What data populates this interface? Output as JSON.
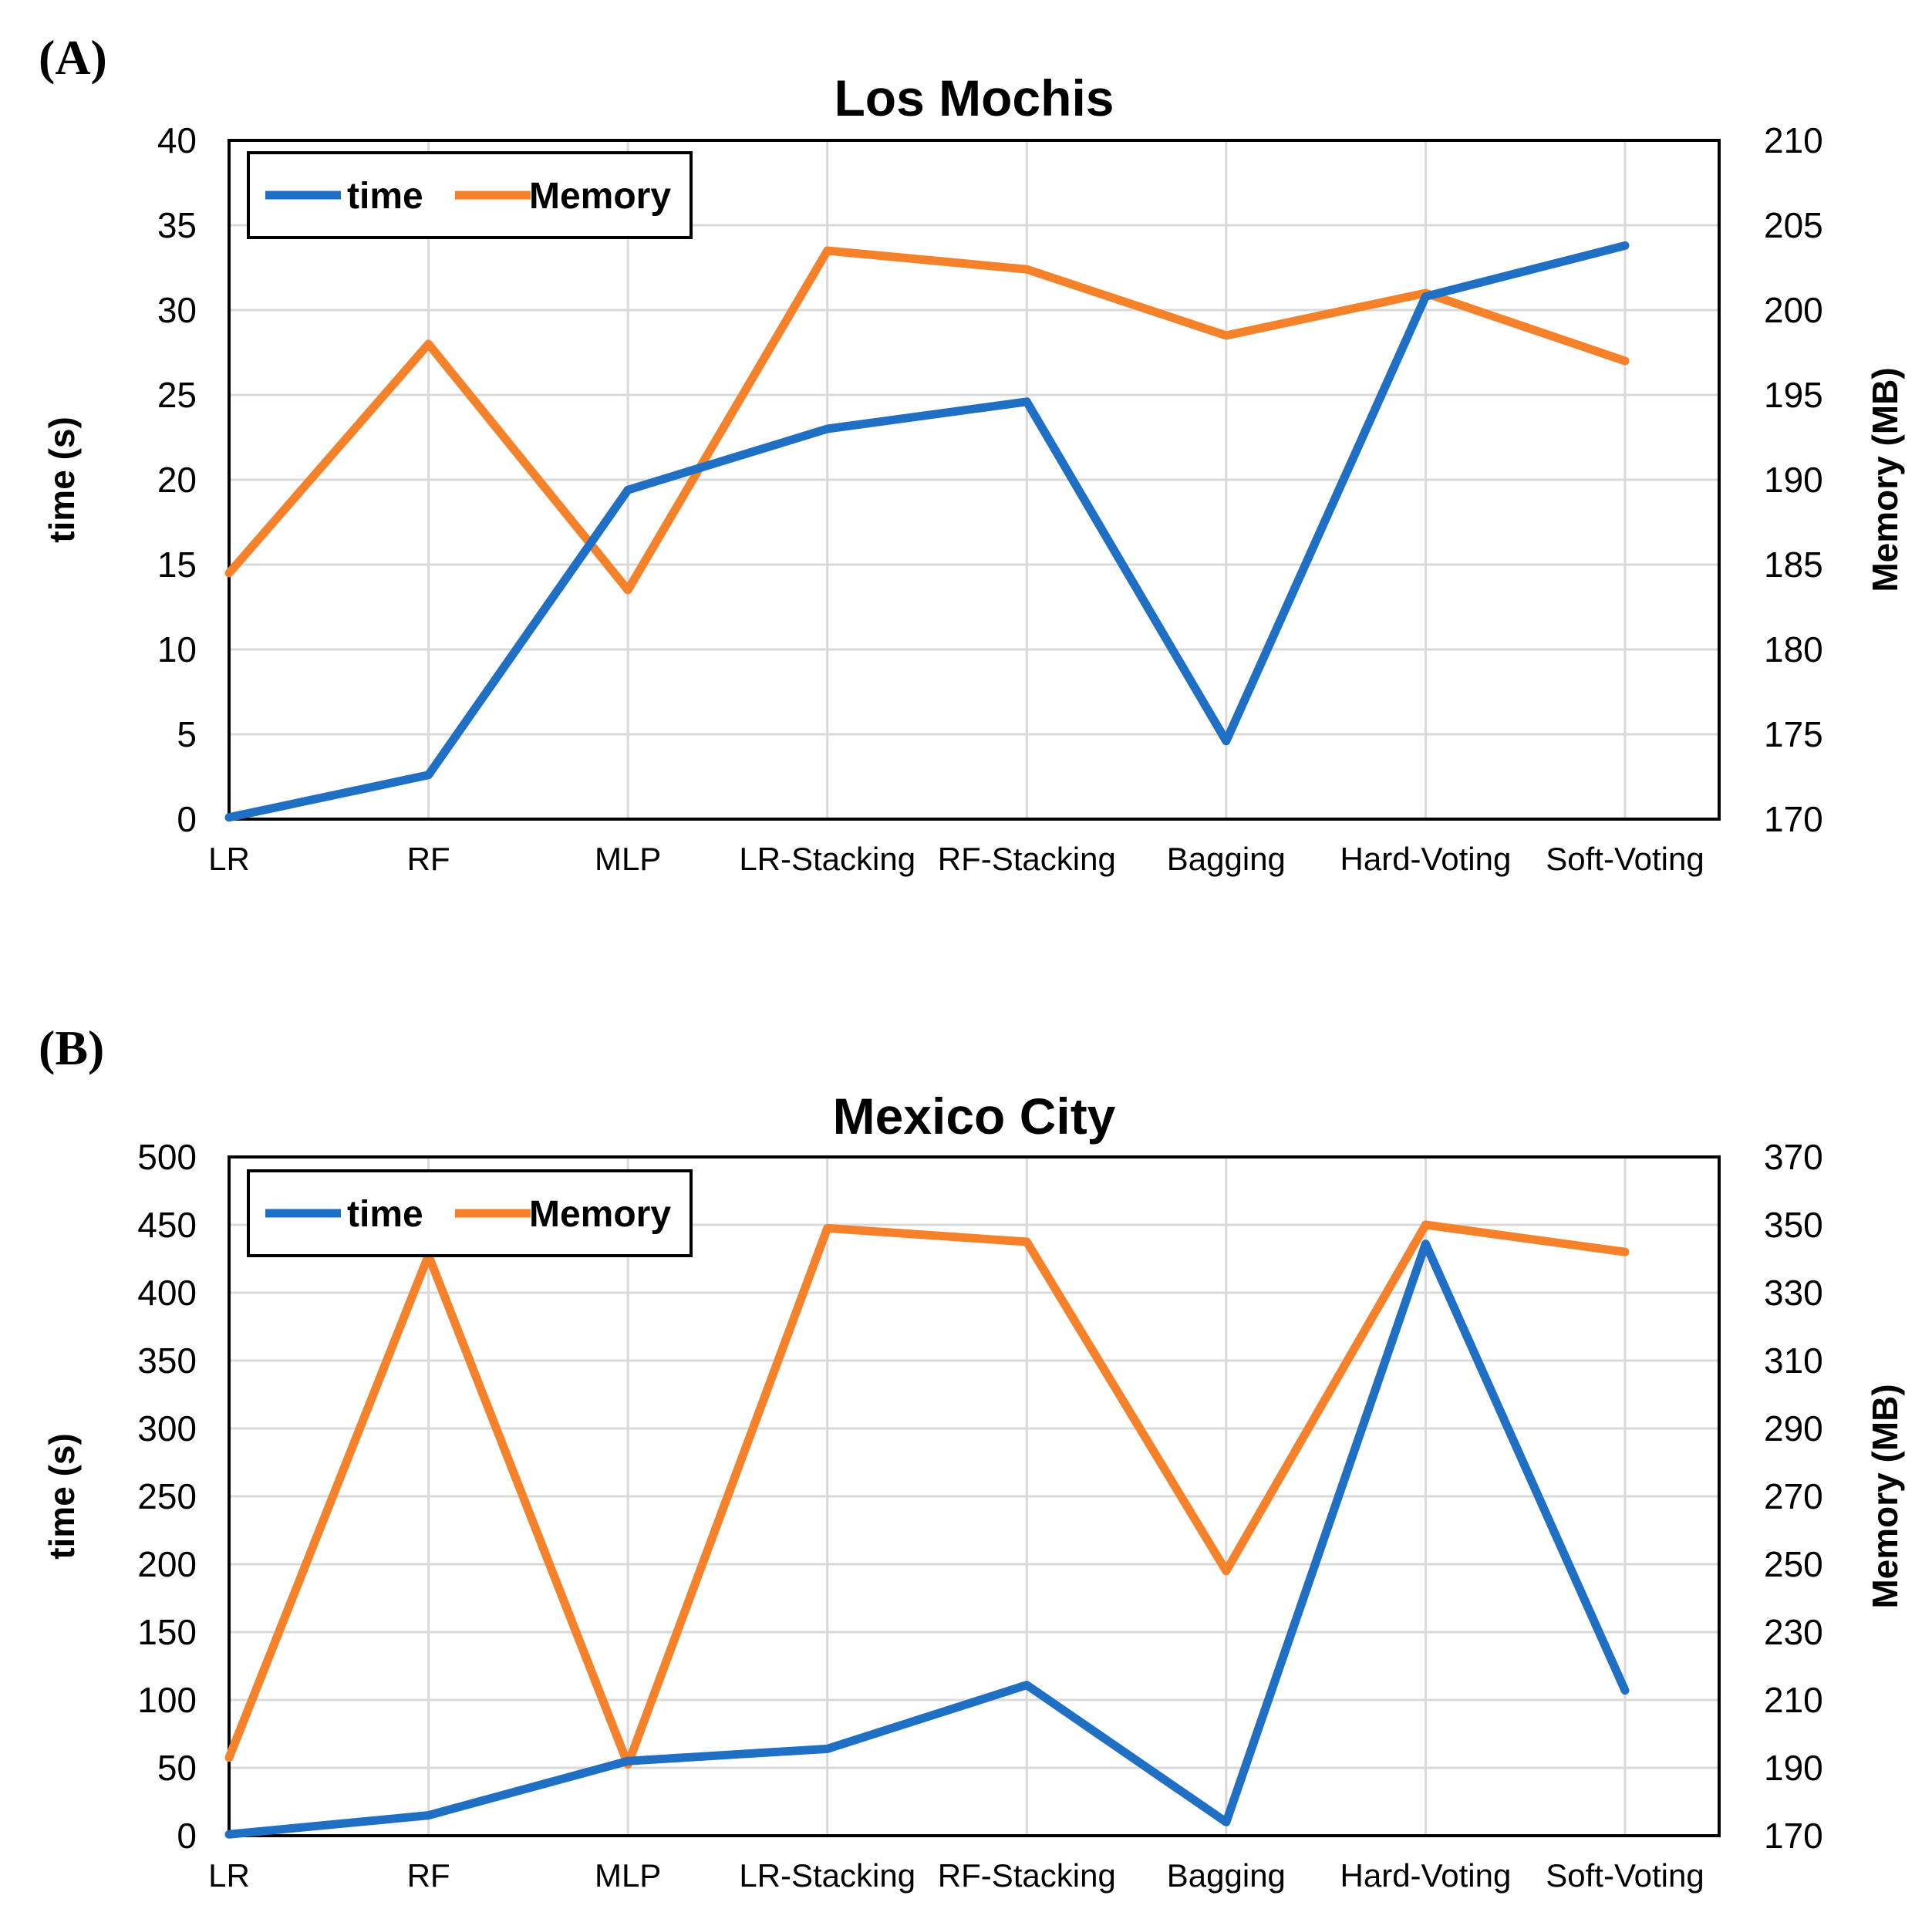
{
  "panels": [
    {
      "label": "(A)"
    },
    {
      "label": "(B)"
    }
  ],
  "colors": {
    "time": "#1f6fc5",
    "memory": "#f5822a",
    "grid": "#d9d9d9",
    "axis": "#000000"
  },
  "chart_data": [
    {
      "type": "line",
      "title": "Los Mochis",
      "categories": [
        "LR",
        "RF",
        "MLP",
        "LR-Stacking",
        "RF-Stacking",
        "Bagging",
        "Hard-Voting",
        "Soft-Voting"
      ],
      "ylabel": "time (s)",
      "y2label": "Memory (MB)",
      "ylim": [
        0,
        40
      ],
      "yticks": [
        "0",
        "5",
        "10",
        "15",
        "20",
        "25",
        "30",
        "35",
        "40"
      ],
      "y2lim": [
        170,
        210
      ],
      "y2ticks": [
        "170",
        "175",
        "180",
        "185",
        "190",
        "195",
        "200",
        "205",
        "210"
      ],
      "legend": [
        "time",
        "Memory"
      ],
      "legend_position": "top-left",
      "series": [
        {
          "name": "time",
          "axis": "left",
          "values": [
            0.1,
            2.6,
            19.4,
            23.0,
            24.6,
            4.6,
            30.8,
            33.8
          ]
        },
        {
          "name": "Memory",
          "axis": "right",
          "values": [
            184.5,
            198.0,
            183.5,
            203.5,
            202.4,
            198.5,
            201.0,
            197.0
          ]
        }
      ]
    },
    {
      "type": "line",
      "title": "Mexico City",
      "categories": [
        "LR",
        "RF",
        "MLP",
        "LR-Stacking",
        "RF-Stacking",
        "Bagging",
        "Hard-Voting",
        "Soft-Voting"
      ],
      "ylabel": "time (s)",
      "y2label": "Memory (MB)",
      "ylim": [
        0,
        500
      ],
      "yticks": [
        "0",
        "50",
        "100",
        "150",
        "200",
        "250",
        "300",
        "350",
        "400",
        "450",
        "500"
      ],
      "y2lim": [
        170,
        370
      ],
      "y2ticks": [
        "170",
        "190",
        "210",
        "230",
        "250",
        "270",
        "290",
        "310",
        "330",
        "350",
        "370"
      ],
      "legend": [
        "time",
        "Memory"
      ],
      "legend_position": "top-left",
      "series": [
        {
          "name": "time",
          "axis": "left",
          "values": [
            1,
            15,
            55,
            64,
            111,
            10,
            436,
            107
          ]
        },
        {
          "name": "Memory",
          "axis": "right",
          "values": [
            193,
            341,
            191,
            349,
            345,
            248,
            350,
            342
          ]
        }
      ]
    }
  ]
}
